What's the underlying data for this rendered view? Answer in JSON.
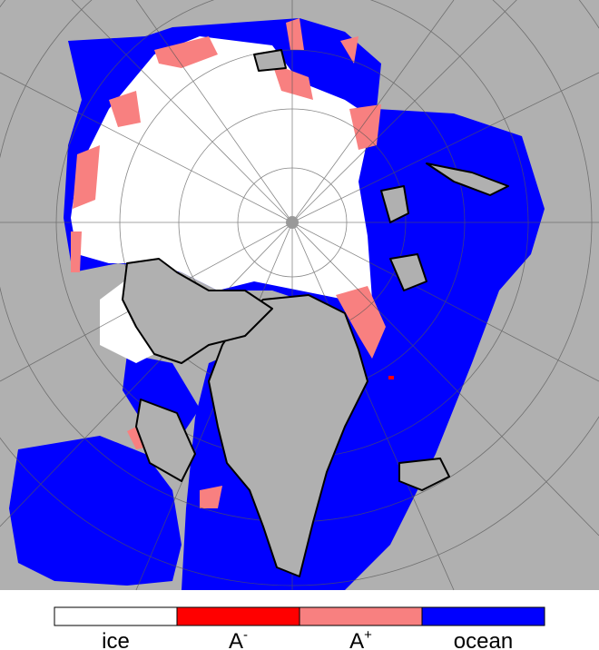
{
  "legend": {
    "entries": [
      {
        "label": "ice",
        "color": "#ffffff"
      },
      {
        "label": {
          "base": "A",
          "sup": "-"
        },
        "color": "#ff0000"
      },
      {
        "label": {
          "base": "A",
          "sup": "+"
        },
        "color": "#f88080"
      },
      {
        "label": "ocean",
        "color": "#0000ff"
      }
    ]
  }
}
